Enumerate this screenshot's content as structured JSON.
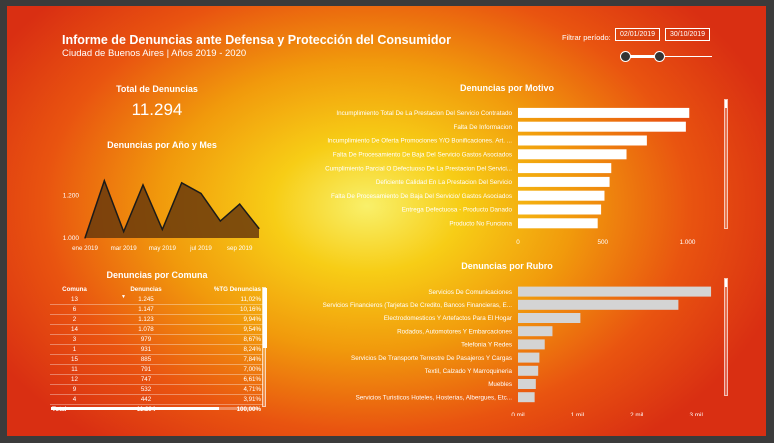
{
  "header": {
    "title": "Informe de Denuncias ante Defensa y Protección del Consumidor",
    "subtitle": "Ciudad de Buenos Aires | Años 2019 - 2020"
  },
  "filter": {
    "label": "Filtrar período:",
    "start": "02/01/2019",
    "end": "30/10/2019",
    "start_fraction": 0.0,
    "end_fraction": 0.42
  },
  "kpi": {
    "label": "Total de Denuncias",
    "value": "11.294"
  },
  "colors": {
    "motivo_bar": "#ffffff",
    "rubro_bar": "#d4d4d4",
    "area_fill": "#6a3a0c",
    "area_line": "#1a1a1a"
  },
  "chart_data": [
    {
      "id": "denuncias-por-anio-mes",
      "type": "area",
      "title": "Denuncias por Año y Mes",
      "ytick_labels": [
        "1.200",
        "1.000"
      ],
      "ytick_values": [
        1200,
        1000
      ],
      "ylim": [
        1000,
        1330
      ],
      "xtick_labels": [
        "ene 2019",
        "mar 2019",
        "may 2019",
        "jul 2019",
        "sep 2019"
      ],
      "xtick_index": [
        0,
        2,
        4,
        6,
        8
      ],
      "x": [
        "ene 2019",
        "feb 2019",
        "mar 2019",
        "abr 2019",
        "may 2019",
        "jun 2019",
        "jul 2019",
        "ago 2019",
        "sep 2019",
        "oct 2019"
      ],
      "values": [
        1000,
        1270,
        1030,
        1250,
        1040,
        1260,
        1210,
        1080,
        1160,
        1045
      ],
      "x_extra": [
        1000
      ],
      "grid": false
    },
    {
      "id": "denuncias-por-motivo",
      "type": "bar",
      "orientation": "horizontal",
      "title": "Denuncias por Motivo",
      "categories": [
        "Incumplimiento Total De La Prestacion Del Servicio Contratado",
        "Falta De Informacion",
        "Incumplimiento De Oferta Promociones Y/O Bonificaciones. Art. ...",
        "Falta De Procesamiento De Baja Del Servicio Gastos Asociados",
        "Cumplimiento Parcial O Defectuoso De La Prestacion Del Servici...",
        "Deficiente Calidad En La Prestacion Del Servicio",
        "Falta De Procesamiento De Baja Del Servicio/ Gastos Asociados",
        "Entrega Defectuosa - Producto Danado",
        "Producto No Funciona"
      ],
      "values": [
        1010,
        990,
        760,
        640,
        550,
        540,
        510,
        490,
        470
      ],
      "xlim": [
        0,
        1150
      ],
      "xtick_values": [
        0,
        500,
        1000
      ],
      "xtick_labels": [
        "0",
        "500",
        "1.000"
      ]
    },
    {
      "id": "denuncias-por-rubro",
      "type": "bar",
      "orientation": "horizontal",
      "title": "Denuncias por Rubro",
      "categories": [
        "Servicios De Comunicaciones",
        "Servicios Financieros (Tarjetas De Credito, Bancos Financieras, E...",
        "Electrodomesticos Y Artefactos Para El Hogar",
        "Rodados, Automotores Y Embarcaciones",
        "Telefonia Y Redes",
        "Servicios De Transporte Terrestre De Pasajeros Y Cargas",
        "Textil, Calzado Y Marroquineria",
        "Muebles",
        "Servicios Turisticos Hoteles, Hosterias, Albergues, Etc..."
      ],
      "values": [
        3250,
        2700,
        1050,
        580,
        450,
        360,
        340,
        300,
        280
      ],
      "xlim": [
        0,
        3350
      ],
      "xtick_values": [
        0,
        1000,
        2000,
        3000
      ],
      "xtick_labels": [
        "0 mil",
        "1 mil",
        "2 mil",
        "3 mil"
      ]
    },
    {
      "id": "denuncias-por-comuna",
      "type": "table",
      "title": "Denuncias por Comuna",
      "columns": [
        "Comuna",
        "Denuncias",
        "%TG Denuncias"
      ],
      "rows": [
        [
          "13",
          "1.245",
          "11,02%"
        ],
        [
          "6",
          "1.147",
          "10,16%"
        ],
        [
          "2",
          "1.123",
          "9,94%"
        ],
        [
          "14",
          "1.078",
          "9,54%"
        ],
        [
          "3",
          "979",
          "8,67%"
        ],
        [
          "1",
          "931",
          "8,24%"
        ],
        [
          "15",
          "885",
          "7,84%"
        ],
        [
          "11",
          "791",
          "7,00%"
        ],
        [
          "12",
          "747",
          "6,61%"
        ],
        [
          "9",
          "532",
          "4,71%"
        ],
        [
          "4",
          "442",
          "3,91%"
        ]
      ],
      "total": [
        "Total",
        "11.294",
        "100,00%"
      ]
    }
  ]
}
